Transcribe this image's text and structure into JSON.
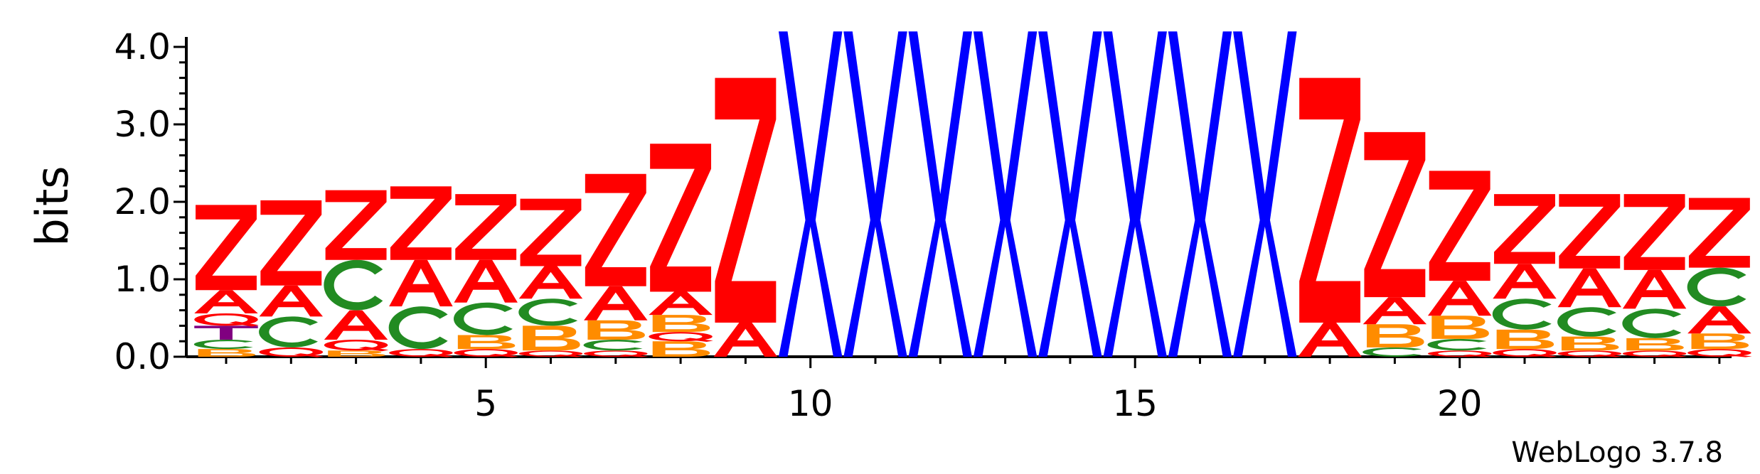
{
  "chart_data": {
    "type": "sequence-logo",
    "ylabel": "bits",
    "ylim": [
      0,
      4.0
    ],
    "y_ticks": [
      "0.0",
      "1.0",
      "2.0",
      "3.0",
      "4.0"
    ],
    "x_range": [
      1,
      24
    ],
    "x_ticks": [
      5,
      10,
      15,
      20
    ],
    "credit": "WebLogo 3.7.8",
    "colors": {
      "Z": "#ff0000",
      "A": "#ff0000",
      "Q": "#ff0000",
      "C": "#228b22",
      "B": "#ff8c00",
      "X": "#0000ff",
      "T": "#800080"
    },
    "positions": [
      {
        "pos": 1,
        "stack": [
          {
            "l": "B",
            "h": 0.1
          },
          {
            "l": "C",
            "h": 0.12
          },
          {
            "l": "T",
            "h": 0.18
          },
          {
            "l": "Q",
            "h": 0.16
          },
          {
            "l": "A",
            "h": 0.3
          },
          {
            "l": "Z",
            "h": 1.1
          }
        ]
      },
      {
        "pos": 2,
        "stack": [
          {
            "l": "Q",
            "h": 0.12
          },
          {
            "l": "C",
            "h": 0.4
          },
          {
            "l": "A",
            "h": 0.4
          },
          {
            "l": "Z",
            "h": 1.1
          }
        ]
      },
      {
        "pos": 3,
        "stack": [
          {
            "l": "B",
            "h": 0.08
          },
          {
            "l": "Q",
            "h": 0.14
          },
          {
            "l": "A",
            "h": 0.38
          },
          {
            "l": "C",
            "h": 0.65
          },
          {
            "l": "Z",
            "h": 0.9
          }
        ]
      },
      {
        "pos": 4,
        "stack": [
          {
            "l": "Q",
            "h": 0.1
          },
          {
            "l": "C",
            "h": 0.55
          },
          {
            "l": "A",
            "h": 0.6
          },
          {
            "l": "Z",
            "h": 0.95
          }
        ]
      },
      {
        "pos": 5,
        "stack": [
          {
            "l": "Q",
            "h": 0.1
          },
          {
            "l": "B",
            "h": 0.18
          },
          {
            "l": "C",
            "h": 0.42
          },
          {
            "l": "A",
            "h": 0.55
          },
          {
            "l": "Z",
            "h": 0.85
          }
        ]
      },
      {
        "pos": 6,
        "stack": [
          {
            "l": "Q",
            "h": 0.08
          },
          {
            "l": "B",
            "h": 0.32
          },
          {
            "l": "C",
            "h": 0.35
          },
          {
            "l": "A",
            "h": 0.42
          },
          {
            "l": "Z",
            "h": 0.87
          }
        ]
      },
      {
        "pos": 7,
        "stack": [
          {
            "l": "Q",
            "h": 0.08
          },
          {
            "l": "C",
            "h": 0.14
          },
          {
            "l": "B",
            "h": 0.25
          },
          {
            "l": "A",
            "h": 0.44
          },
          {
            "l": "Z",
            "h": 1.45
          }
        ]
      },
      {
        "pos": 8,
        "stack": [
          {
            "l": "B",
            "h": 0.2
          },
          {
            "l": "Q",
            "h": 0.12
          },
          {
            "l": "B",
            "h": 0.22
          },
          {
            "l": "A",
            "h": 0.3
          },
          {
            "l": "Z",
            "h": 1.91
          }
        ]
      },
      {
        "pos": 9,
        "stack": [
          {
            "l": "A",
            "h": 0.44
          },
          {
            "l": "Z",
            "h": 3.16
          }
        ]
      },
      {
        "pos": 10,
        "stack": [
          {
            "l": "X",
            "h": 4.2
          }
        ]
      },
      {
        "pos": 11,
        "stack": [
          {
            "l": "X",
            "h": 4.2
          }
        ]
      },
      {
        "pos": 12,
        "stack": [
          {
            "l": "X",
            "h": 4.2
          }
        ]
      },
      {
        "pos": 13,
        "stack": [
          {
            "l": "X",
            "h": 4.2
          }
        ]
      },
      {
        "pos": 14,
        "stack": [
          {
            "l": "X",
            "h": 4.2
          }
        ]
      },
      {
        "pos": 15,
        "stack": [
          {
            "l": "X",
            "h": 4.2
          }
        ]
      },
      {
        "pos": 16,
        "stack": [
          {
            "l": "X",
            "h": 4.2
          }
        ]
      },
      {
        "pos": 17,
        "stack": [
          {
            "l": "X",
            "h": 4.2
          }
        ]
      },
      {
        "pos": 18,
        "stack": [
          {
            "l": "A",
            "h": 0.44
          },
          {
            "l": "Z",
            "h": 3.16
          }
        ]
      },
      {
        "pos": 19,
        "stack": [
          {
            "l": "C",
            "h": 0.12
          },
          {
            "l": "B",
            "h": 0.3
          },
          {
            "l": "A",
            "h": 0.35
          },
          {
            "l": "Z",
            "h": 2.13
          }
        ]
      },
      {
        "pos": 20,
        "stack": [
          {
            "l": "Q",
            "h": 0.08
          },
          {
            "l": "C",
            "h": 0.15
          },
          {
            "l": "B",
            "h": 0.3
          },
          {
            "l": "A",
            "h": 0.45
          },
          {
            "l": "Z",
            "h": 1.42
          }
        ]
      },
      {
        "pos": 21,
        "stack": [
          {
            "l": "Q",
            "h": 0.1
          },
          {
            "l": "B",
            "h": 0.25
          },
          {
            "l": "C",
            "h": 0.4
          },
          {
            "l": "A",
            "h": 0.45
          },
          {
            "l": "Z",
            "h": 0.9
          }
        ]
      },
      {
        "pos": 22,
        "stack": [
          {
            "l": "Q",
            "h": 0.08
          },
          {
            "l": "B",
            "h": 0.18
          },
          {
            "l": "C",
            "h": 0.38
          },
          {
            "l": "A",
            "h": 0.5
          },
          {
            "l": "Z",
            "h": 0.96
          }
        ]
      },
      {
        "pos": 23,
        "stack": [
          {
            "l": "Q",
            "h": 0.08
          },
          {
            "l": "B",
            "h": 0.16
          },
          {
            "l": "C",
            "h": 0.38
          },
          {
            "l": "A",
            "h": 0.5
          },
          {
            "l": "Z",
            "h": 0.98
          }
        ]
      },
      {
        "pos": 24,
        "stack": [
          {
            "l": "Q",
            "h": 0.1
          },
          {
            "l": "B",
            "h": 0.2
          },
          {
            "l": "A",
            "h": 0.35
          },
          {
            "l": "C",
            "h": 0.5
          },
          {
            "l": "Z",
            "h": 0.9
          }
        ]
      }
    ]
  }
}
